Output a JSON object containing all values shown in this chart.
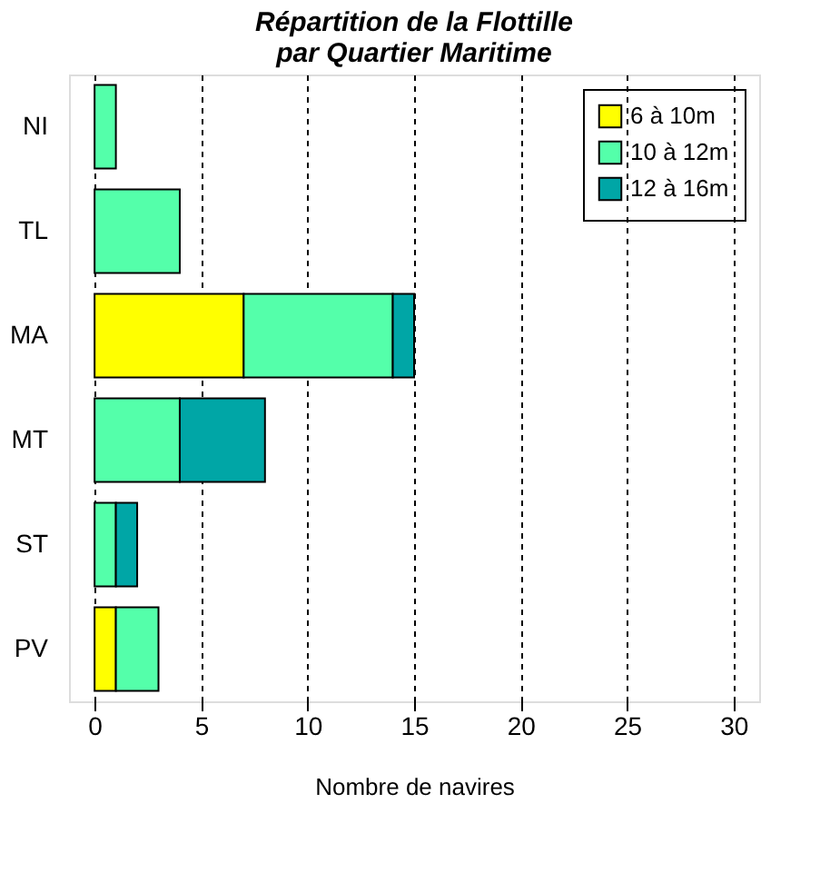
{
  "chart_data": {
    "type": "bar",
    "orientation": "horizontal",
    "stacked": true,
    "title": "Répartition de la Flottille\npar Quartier Maritime",
    "xlabel": "Nombre de navires",
    "categories": [
      "NI",
      "TL",
      "MA",
      "MT",
      "ST",
      "PV"
    ],
    "series": [
      {
        "name": "6 à 10m",
        "color": "#ffff00",
        "values": [
          0,
          0,
          7,
          0,
          0,
          1
        ]
      },
      {
        "name": "10 à 12m",
        "color": "#54ffaa",
        "values": [
          1,
          4,
          7,
          4,
          1,
          2
        ]
      },
      {
        "name": "12 à 16m",
        "color": "#00a6a6",
        "values": [
          0,
          0,
          1,
          4,
          1,
          0
        ]
      }
    ],
    "xlim": [
      -1.2,
      31.2
    ],
    "xticks": [
      0,
      5,
      10,
      15,
      20,
      25,
      30
    ],
    "grid": "x",
    "legend": "top right"
  }
}
